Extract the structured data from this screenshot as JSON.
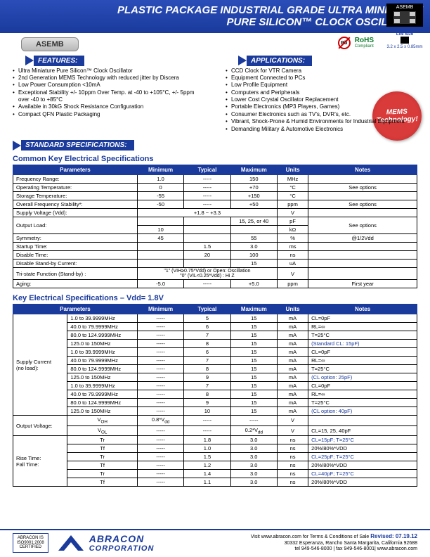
{
  "header": {
    "title_line1": "PLASTIC PACKAGE INDUSTRIAL GRADE ULTRA MINIATURE",
    "title_line2": "PURE SILICON™ CLOCK OSCILLATOR",
    "chip_label": "ASEMB",
    "model": "ASEMB",
    "lifesize_label": "Life Size",
    "lifesize_dims": "3.2 x 2.5 x 0.85mm",
    "pb_text": "Pb",
    "rohs": "RoHS",
    "rohs_sub": "Compliant",
    "mems": "MEMS Technology!"
  },
  "features": {
    "label": "FEATURES:",
    "items": [
      "Ultra Miniature Pure Silicon™ Clock Oscillator",
      "2nd Generation MEMS Technology with reduced jitter by Discera",
      "Low Power Consumption <10mA",
      "Exceptional Stability +/- 10ppm Over Temp. at -40 to +105°C,\n+/- 5ppm over -40 to +85°C",
      "Available in 30kG Shock Resistance Configuration",
      "Compact QFN Plastic Packaging"
    ]
  },
  "applications": {
    "label": "APPLICATIONS:",
    "items": [
      "CCD Clock for VTR Camera",
      "Equipment Connected to PCs",
      "Low Profile Equipment",
      "Computers and Peripherals",
      "Lower Cost Crystal Oscillator Replacement",
      "Portable Electronics (MP3 Players, Games)",
      "Consumer Electronics such as TV's, DVR's, etc.",
      "Vibrant, Shock-Prone & Humid Environments for Industrial Equipment",
      "Demanding Military & Automotive Electronics"
    ]
  },
  "standard_specs_label": "STANDARD SPECIFICATIONS:",
  "table1": {
    "title": "Common Key Electrical Specifications",
    "columns": [
      "Parameters",
      "Minimum",
      "Typical",
      "Maximum",
      "Units",
      "Notes"
    ],
    "rows": [
      [
        "Frequency Range:",
        "1.0",
        "-----",
        "150",
        "MHz",
        ""
      ],
      [
        "Operating Temperature:",
        "0",
        "-----",
        "+70",
        "°C",
        "See options"
      ],
      [
        "Storage Temperature:",
        "-55",
        "-----",
        "+150",
        "°C",
        ""
      ],
      [
        "Overall Frequency Stability*:",
        "-50",
        "-----",
        "+50",
        "ppm",
        "See options"
      ],
      [
        "Supply Voltage (Vdd):",
        "",
        "+1.8 ~ +3.3",
        "",
        "V",
        ""
      ],
      [
        "Output Load:",
        "",
        "",
        "15, 25, or 40",
        "pF",
        "See options"
      ],
      [
        "",
        "10",
        "",
        "",
        "kΩ",
        ""
      ],
      [
        "Symmetry:",
        "45",
        "",
        "55",
        "%",
        "@1/2Vdd"
      ],
      [
        "Startup Time:",
        "",
        "1.5",
        "3.0",
        "ms",
        ""
      ],
      [
        "Disable Time:",
        "",
        "20",
        "100",
        "ns",
        ""
      ],
      [
        "Disable Stand-by Current:",
        "",
        "",
        "15",
        "uA",
        ""
      ],
      [
        "Tri-state Function (Stand-by) :",
        "",
        "\"1\" (VIH≥0.75*Vdd) or Open: Oscillation\n\"0\" (VIL<0.25*Vdd) : Hi Z",
        "",
        "V",
        ""
      ],
      [
        "Aging:",
        "-5.0",
        "-----",
        "+5.0",
        "ppm",
        "First year"
      ]
    ]
  },
  "table2": {
    "title": "Key Electrical Specifications – Vdd= 1.8V",
    "columns": [
      "Parameters",
      "",
      "Minimum",
      "Typical",
      "Maximum",
      "Units",
      "Notes"
    ],
    "supply_label": "Supply Current\n(no load):",
    "supply_groups": [
      {
        "rows": [
          [
            "1.0 to 39.9999MHz",
            "-----",
            "5",
            "15",
            "mA",
            "CL=0pF"
          ],
          [
            "40.0 to 79.9999MHz",
            "-----",
            "6",
            "15",
            "mA",
            "RL=∞"
          ],
          [
            "80.0 to 124.9999MHz",
            "-----",
            "7",
            "15",
            "mA",
            "T=25°C"
          ],
          [
            "125.0 to 150MHz",
            "-----",
            "8",
            "15",
            "mA",
            "(Standard CL: 15pF)"
          ]
        ],
        "note_accent": 3
      },
      {
        "rows": [
          [
            "1.0 to 39.9999MHz",
            "-----",
            "6",
            "15",
            "mA",
            "CL=0pF"
          ],
          [
            "40.0 to 79.9999MHz",
            "-----",
            "7",
            "15",
            "mA",
            "RL=∞"
          ],
          [
            "80.0 to 124.9999MHz",
            "-----",
            "8",
            "15",
            "mA",
            "T=25°C"
          ],
          [
            "125.0 to 150MHz",
            "-----",
            "9",
            "15",
            "mA",
            "(CL option: 25pF)"
          ]
        ],
        "note_accent": 3
      },
      {
        "rows": [
          [
            "1.0 to 39.9999MHz",
            "-----",
            "7",
            "15",
            "mA",
            "CL=0pF"
          ],
          [
            "40.0 to 79.9999MHz",
            "-----",
            "8",
            "15",
            "mA",
            "RL=∞"
          ],
          [
            "80.0 to 124.9999MHz",
            "-----",
            "9",
            "15",
            "mA",
            "T=25°C"
          ],
          [
            "125.0 to 150MHz",
            "-----",
            "10",
            "15",
            "mA",
            "(CL option: 40pF)"
          ]
        ],
        "note_accent": 3
      }
    ],
    "output_voltage": {
      "label": "Output Voltage:",
      "rows": [
        [
          "V_OH",
          "0.8*V_dd",
          "-----",
          "-----",
          "V",
          ""
        ],
        [
          "V_OL",
          "-----",
          "-----",
          "0.2*V_dd",
          "V",
          "CL=15, 25, 40pF"
        ]
      ]
    },
    "rise_fall": {
      "label": "Rise Time:\nFall Time:",
      "rows": [
        [
          "Tr",
          "-----",
          "1.8",
          "3.0",
          "ns",
          "CL=15pF; T=25°C"
        ],
        [
          "Tf",
          "-----",
          "1.0",
          "3.0",
          "ns",
          "20%/80%*VDD"
        ],
        [
          "Tr",
          "-----",
          "1.5",
          "3.0",
          "ns",
          "CL=25pF; T=25°C"
        ],
        [
          "Tf",
          "-----",
          "1.2",
          "3.0",
          "ns",
          "20%/80%*VDD"
        ],
        [
          "Tr",
          "-----",
          "1.4",
          "3.0",
          "ns",
          "CL=40pF; T=25°C"
        ],
        [
          "Tf",
          "-----",
          "1.1",
          "3.0",
          "ns",
          "20%/80%*VDD"
        ]
      ]
    }
  },
  "footer": {
    "iso": "ABRACON IS\nISO9001:2008\nCERTIFIED",
    "brand1": "ABRACON",
    "brand2": "CORPORATION",
    "visit": "Visit www.abracon.com for Terms & Conditions of Sale",
    "revised": "Revised: 07.19.12",
    "addr": "30332 Esperanza, Rancho Santa Margarita, California 92688",
    "tel": "tel 949-546-8000 | fax 949-546-8001| www.abracon.com"
  },
  "colors": {
    "primary": "#1a3a9c",
    "accent": "#d93a3a",
    "green": "#0a7a2a"
  }
}
